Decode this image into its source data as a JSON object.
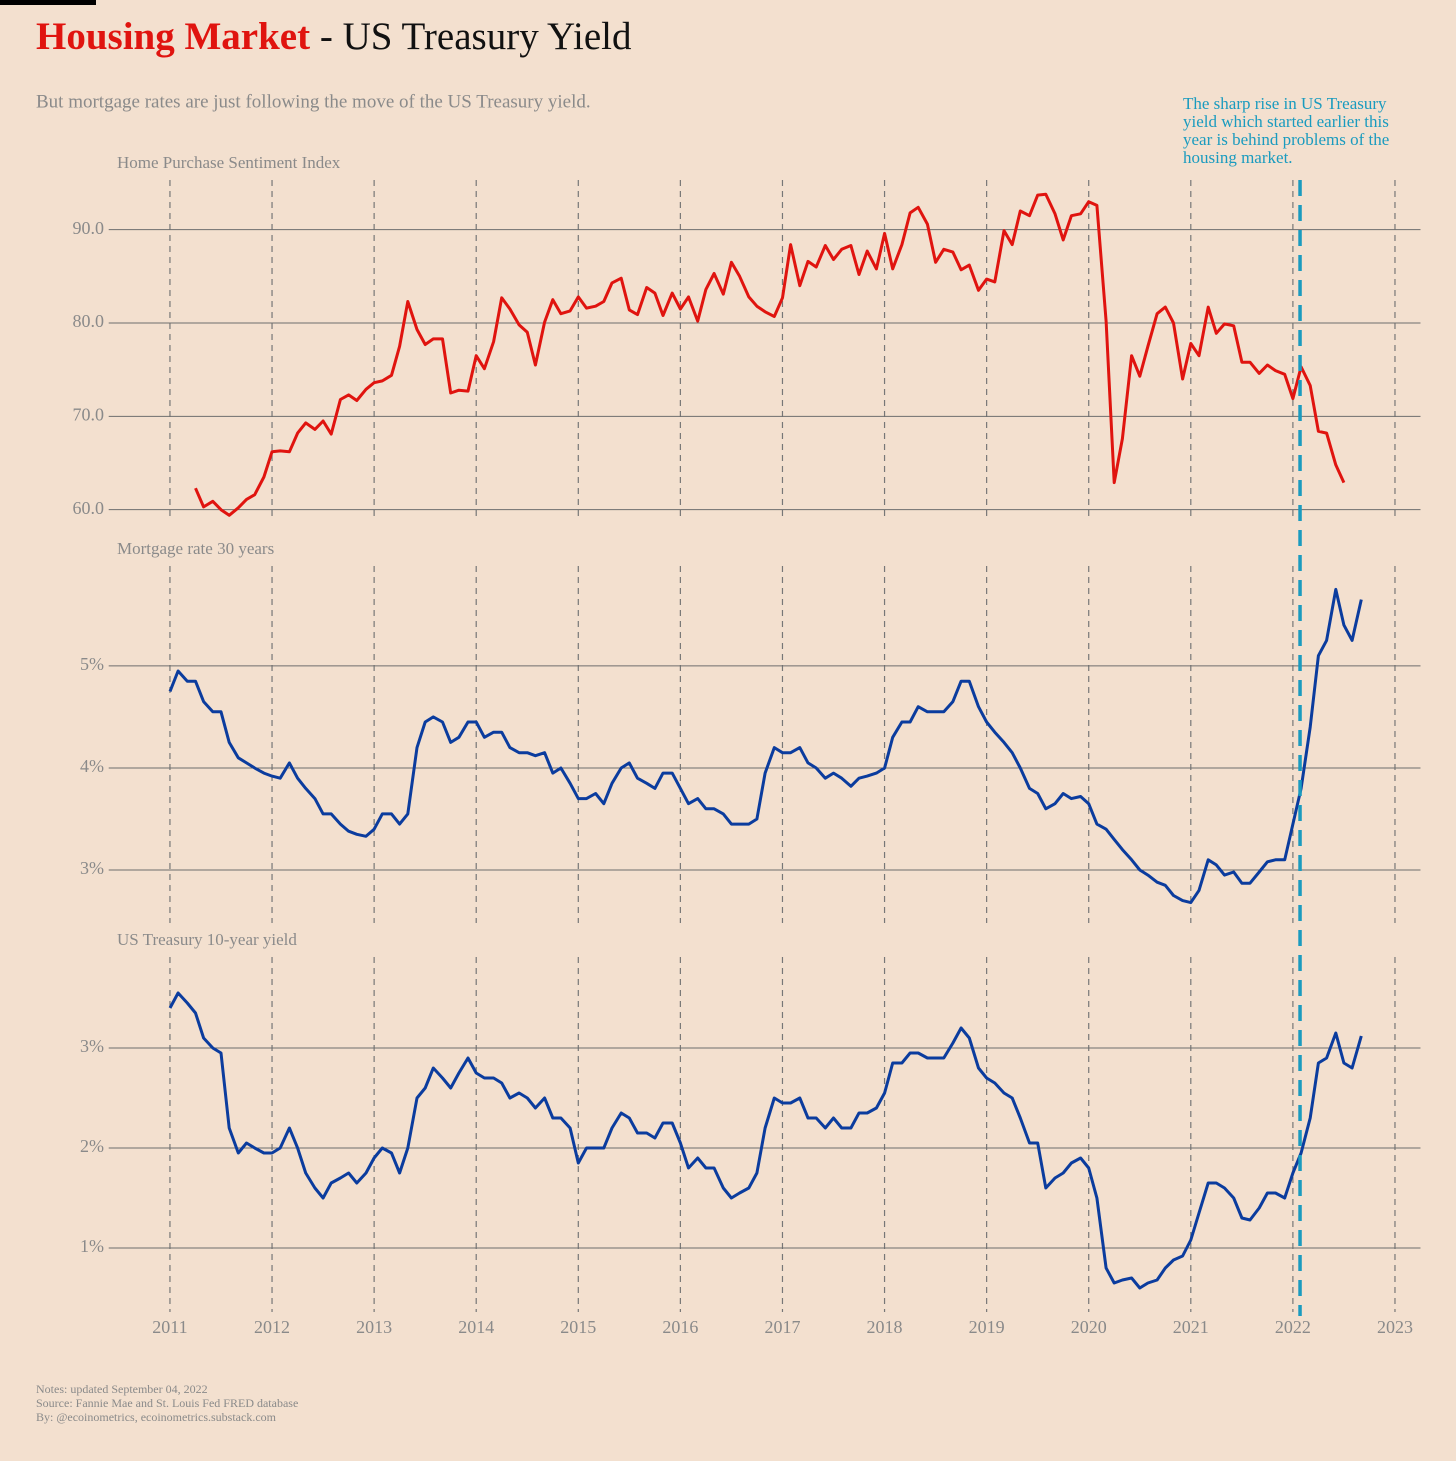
{
  "title": {
    "highlight": "Housing Market",
    "rest": " - US Treasury Yield"
  },
  "subtitle": "But mortgage rates are just following the move of the US Treasury yield.",
  "annotation": {
    "lines": [
      "The sharp rise in US Treasury",
      "yield which started earlier this",
      "year is behind problems of the",
      "housing market."
    ],
    "x": 2022.07,
    "color": "#1a9bbf"
  },
  "notes": [
    "Notes: updated September 04, 2022",
    "Source: Fannie Mae and St. Louis Fed FRED database",
    "By: @ecoinometrics, ecoinometrics.substack.com"
  ],
  "chart_data": [
    {
      "type": "line",
      "title": "Home Purchase Sentiment Index",
      "color": "#e0140f",
      "ylim": [
        59,
        95
      ],
      "yticks": [
        {
          "value": 60,
          "label": "60.0"
        },
        {
          "value": 70,
          "label": "70.0"
        },
        {
          "value": 80,
          "label": "80.0"
        },
        {
          "value": 90,
          "label": "90.0"
        }
      ],
      "x": [
        2011.25,
        2011.33,
        2011.42,
        2011.5,
        2011.58,
        2011.67,
        2011.75,
        2011.83,
        2011.92,
        2012.0,
        2012.08,
        2012.17,
        2012.25,
        2012.33,
        2012.42,
        2012.5,
        2012.58,
        2012.67,
        2012.75,
        2012.83,
        2012.92,
        2013.0,
        2013.08,
        2013.17,
        2013.25,
        2013.33,
        2013.42,
        2013.5,
        2013.58,
        2013.67,
        2013.75,
        2013.83,
        2013.92,
        2014.0,
        2014.08,
        2014.17,
        2014.25,
        2014.33,
        2014.42,
        2014.5,
        2014.58,
        2014.67,
        2014.75,
        2014.83,
        2014.92,
        2015.0,
        2015.08,
        2015.17,
        2015.25,
        2015.33,
        2015.42,
        2015.5,
        2015.58,
        2015.67,
        2015.75,
        2015.83,
        2015.92,
        2016.0,
        2016.08,
        2016.17,
        2016.25,
        2016.33,
        2016.42,
        2016.5,
        2016.58,
        2016.67,
        2016.75,
        2016.83,
        2016.92,
        2017.0,
        2017.08,
        2017.17,
        2017.25,
        2017.33,
        2017.42,
        2017.5,
        2017.58,
        2017.67,
        2017.75,
        2017.83,
        2017.92,
        2018.0,
        2018.08,
        2018.17,
        2018.25,
        2018.33,
        2018.42,
        2018.5,
        2018.58,
        2018.67,
        2018.75,
        2018.83,
        2018.92,
        2019.0,
        2019.08,
        2019.17,
        2019.25,
        2019.33,
        2019.42,
        2019.5,
        2019.58,
        2019.67,
        2019.75,
        2019.83,
        2019.92,
        2020.0,
        2020.08,
        2020.17,
        2020.25,
        2020.33,
        2020.42,
        2020.5,
        2020.58,
        2020.67,
        2020.75,
        2020.83,
        2020.92,
        2021.0,
        2021.08,
        2021.17,
        2021.25,
        2021.33,
        2021.42,
        2021.5,
        2021.58,
        2021.67,
        2021.75,
        2021.83,
        2021.92,
        2022.0,
        2022.08,
        2022.17,
        2022.25,
        2022.33,
        2022.42,
        2022.5
      ],
      "values": [
        62.3,
        60.3,
        60.9,
        60.0,
        59.4,
        60.2,
        61.1,
        61.6,
        63.5,
        66.2,
        66.3,
        66.2,
        68.2,
        69.3,
        68.6,
        69.5,
        68.1,
        71.8,
        72.3,
        71.7,
        72.9,
        73.6,
        73.8,
        74.4,
        77.5,
        82.3,
        79.3,
        77.7,
        78.3,
        78.3,
        72.5,
        72.8,
        72.7,
        76.5,
        75.1,
        78.0,
        82.7,
        81.5,
        79.8,
        79.0,
        75.5,
        80.1,
        82.5,
        81.0,
        81.3,
        82.8,
        81.6,
        81.8,
        82.3,
        84.3,
        84.8,
        81.4,
        80.9,
        83.8,
        83.2,
        80.8,
        83.2,
        81.5,
        82.8,
        80.2,
        83.6,
        85.3,
        83.1,
        86.5,
        85.0,
        82.8,
        81.8,
        81.2,
        80.7,
        82.7,
        88.4,
        84.0,
        86.6,
        86.0,
        88.3,
        86.8,
        87.9,
        88.3,
        85.2,
        87.7,
        85.8,
        89.6,
        85.8,
        88.4,
        91.8,
        92.4,
        90.6,
        86.5,
        87.9,
        87.6,
        85.7,
        86.2,
        83.5,
        84.7,
        84.4,
        89.9,
        88.4,
        92.0,
        91.5,
        93.7,
        93.8,
        91.7,
        88.9,
        91.5,
        91.7,
        93.0,
        92.6,
        80.2,
        62.9,
        67.6,
        76.5,
        74.3,
        77.5,
        81.0,
        81.7,
        80.0,
        74.0,
        77.8,
        76.5,
        81.7,
        78.9,
        79.9,
        79.7,
        75.8,
        75.8,
        74.6,
        75.5,
        74.9,
        74.5,
        71.9,
        75.3,
        73.3,
        68.4,
        68.2,
        64.8,
        62.9
      ]
    },
    {
      "type": "line",
      "title": "Mortgage rate 30 years",
      "color": "#0b3c9e",
      "ylim": [
        2.5,
        5.95
      ],
      "yticks": [
        {
          "value": 3,
          "label": "3%"
        },
        {
          "value": 4,
          "label": "4%"
        },
        {
          "value": 5,
          "label": "5%"
        }
      ],
      "x": [
        2011.0,
        2011.08,
        2011.17,
        2011.25,
        2011.33,
        2011.42,
        2011.5,
        2011.58,
        2011.67,
        2011.75,
        2011.83,
        2011.92,
        2012.0,
        2012.08,
        2012.17,
        2012.25,
        2012.33,
        2012.42,
        2012.5,
        2012.58,
        2012.67,
        2012.75,
        2012.83,
        2012.92,
        2013.0,
        2013.08,
        2013.17,
        2013.25,
        2013.33,
        2013.42,
        2013.5,
        2013.58,
        2013.67,
        2013.75,
        2013.83,
        2013.92,
        2014.0,
        2014.08,
        2014.17,
        2014.25,
        2014.33,
        2014.42,
        2014.5,
        2014.58,
        2014.67,
        2014.75,
        2014.83,
        2014.92,
        2015.0,
        2015.08,
        2015.17,
        2015.25,
        2015.33,
        2015.42,
        2015.5,
        2015.58,
        2015.67,
        2015.75,
        2015.83,
        2015.92,
        2016.0,
        2016.08,
        2016.17,
        2016.25,
        2016.33,
        2016.42,
        2016.5,
        2016.58,
        2016.67,
        2016.75,
        2016.83,
        2016.92,
        2017.0,
        2017.08,
        2017.17,
        2017.25,
        2017.33,
        2017.42,
        2017.5,
        2017.58,
        2017.67,
        2017.75,
        2017.83,
        2017.92,
        2018.0,
        2018.08,
        2018.17,
        2018.25,
        2018.33,
        2018.42,
        2018.5,
        2018.58,
        2018.67,
        2018.75,
        2018.83,
        2018.92,
        2019.0,
        2019.08,
        2019.17,
        2019.25,
        2019.33,
        2019.42,
        2019.5,
        2019.58,
        2019.67,
        2019.75,
        2019.83,
        2019.92,
        2020.0,
        2020.08,
        2020.17,
        2020.25,
        2020.33,
        2020.42,
        2020.5,
        2020.58,
        2020.67,
        2020.75,
        2020.83,
        2020.92,
        2021.0,
        2021.08,
        2021.17,
        2021.25,
        2021.33,
        2021.42,
        2021.5,
        2021.58,
        2021.67,
        2021.75,
        2021.83,
        2021.92,
        2022.0,
        2022.08,
        2022.17,
        2022.25,
        2022.33,
        2022.42,
        2022.5,
        2022.58,
        2022.67
      ],
      "values": [
        4.75,
        4.95,
        4.85,
        4.85,
        4.65,
        4.55,
        4.55,
        4.25,
        4.1,
        4.05,
        4.0,
        3.95,
        3.92,
        3.9,
        4.05,
        3.9,
        3.8,
        3.7,
        3.55,
        3.55,
        3.45,
        3.38,
        3.35,
        3.33,
        3.4,
        3.55,
        3.55,
        3.45,
        3.55,
        4.2,
        4.45,
        4.5,
        4.45,
        4.25,
        4.3,
        4.45,
        4.45,
        4.3,
        4.35,
        4.35,
        4.2,
        4.15,
        4.15,
        4.12,
        4.15,
        3.95,
        4.0,
        3.85,
        3.7,
        3.7,
        3.75,
        3.65,
        3.85,
        4.0,
        4.05,
        3.9,
        3.85,
        3.8,
        3.95,
        3.95,
        3.8,
        3.65,
        3.7,
        3.6,
        3.6,
        3.55,
        3.45,
        3.45,
        3.45,
        3.5,
        3.95,
        4.2,
        4.15,
        4.15,
        4.2,
        4.05,
        4.0,
        3.9,
        3.95,
        3.9,
        3.82,
        3.9,
        3.92,
        3.95,
        4.0,
        4.3,
        4.45,
        4.45,
        4.6,
        4.55,
        4.55,
        4.55,
        4.65,
        4.85,
        4.85,
        4.6,
        4.45,
        4.35,
        4.25,
        4.15,
        4.0,
        3.8,
        3.75,
        3.6,
        3.65,
        3.75,
        3.7,
        3.72,
        3.65,
        3.45,
        3.4,
        3.3,
        3.2,
        3.1,
        3.0,
        2.95,
        2.88,
        2.85,
        2.75,
        2.7,
        2.68,
        2.8,
        3.1,
        3.05,
        2.95,
        2.98,
        2.87,
        2.87,
        2.98,
        3.08,
        3.1,
        3.1,
        3.45,
        3.8,
        4.4,
        5.1,
        5.25,
        5.75,
        5.4,
        5.25,
        5.65
      ]
    },
    {
      "type": "line",
      "title": "US Treasury 10-year yield",
      "color": "#0b3c9e",
      "ylim": [
        0.38,
        3.88
      ],
      "yticks": [
        {
          "value": 1,
          "label": "1%"
        },
        {
          "value": 2,
          "label": "2%"
        },
        {
          "value": 3,
          "label": "3%"
        }
      ],
      "xlim": [
        2010.4,
        2023.25
      ],
      "xticks": [
        2011,
        2012,
        2013,
        2014,
        2015,
        2016,
        2017,
        2018,
        2019,
        2020,
        2021,
        2022,
        2023
      ],
      "x": [
        2011.0,
        2011.08,
        2011.17,
        2011.25,
        2011.33,
        2011.42,
        2011.5,
        2011.58,
        2011.67,
        2011.75,
        2011.83,
        2011.92,
        2012.0,
        2012.08,
        2012.17,
        2012.25,
        2012.33,
        2012.42,
        2012.5,
        2012.58,
        2012.67,
        2012.75,
        2012.83,
        2012.92,
        2013.0,
        2013.08,
        2013.17,
        2013.25,
        2013.33,
        2013.42,
        2013.5,
        2013.58,
        2013.67,
        2013.75,
        2013.83,
        2013.92,
        2014.0,
        2014.08,
        2014.17,
        2014.25,
        2014.33,
        2014.42,
        2014.5,
        2014.58,
        2014.67,
        2014.75,
        2014.83,
        2014.92,
        2015.0,
        2015.08,
        2015.17,
        2015.25,
        2015.33,
        2015.42,
        2015.5,
        2015.58,
        2015.67,
        2015.75,
        2015.83,
        2015.92,
        2016.0,
        2016.08,
        2016.17,
        2016.25,
        2016.33,
        2016.42,
        2016.5,
        2016.58,
        2016.67,
        2016.75,
        2016.83,
        2016.92,
        2017.0,
        2017.08,
        2017.17,
        2017.25,
        2017.33,
        2017.42,
        2017.5,
        2017.58,
        2017.67,
        2017.75,
        2017.83,
        2017.92,
        2018.0,
        2018.08,
        2018.17,
        2018.25,
        2018.33,
        2018.42,
        2018.5,
        2018.58,
        2018.67,
        2018.75,
        2018.83,
        2018.92,
        2019.0,
        2019.08,
        2019.17,
        2019.25,
        2019.33,
        2019.42,
        2019.5,
        2019.58,
        2019.67,
        2019.75,
        2019.83,
        2019.92,
        2020.0,
        2020.08,
        2020.17,
        2020.25,
        2020.33,
        2020.42,
        2020.5,
        2020.58,
        2020.67,
        2020.75,
        2020.83,
        2020.92,
        2021.0,
        2021.08,
        2021.17,
        2021.25,
        2021.33,
        2021.42,
        2021.5,
        2021.58,
        2021.67,
        2021.75,
        2021.83,
        2021.92,
        2022.0,
        2022.08,
        2022.17,
        2022.25,
        2022.33,
        2022.42,
        2022.5,
        2022.58,
        2022.67
      ],
      "values": [
        3.4,
        3.55,
        3.45,
        3.35,
        3.1,
        3.0,
        2.95,
        2.2,
        1.95,
        2.05,
        2.0,
        1.95,
        1.95,
        2.0,
        2.2,
        2.0,
        1.75,
        1.6,
        1.5,
        1.65,
        1.7,
        1.75,
        1.65,
        1.75,
        1.9,
        2.0,
        1.95,
        1.75,
        2.0,
        2.5,
        2.6,
        2.8,
        2.7,
        2.6,
        2.75,
        2.9,
        2.75,
        2.7,
        2.7,
        2.65,
        2.5,
        2.55,
        2.5,
        2.4,
        2.5,
        2.3,
        2.3,
        2.2,
        1.85,
        2.0,
        2.0,
        2.0,
        2.2,
        2.35,
        2.3,
        2.15,
        2.15,
        2.1,
        2.25,
        2.25,
        2.05,
        1.8,
        1.9,
        1.8,
        1.8,
        1.6,
        1.5,
        1.55,
        1.6,
        1.75,
        2.2,
        2.5,
        2.45,
        2.45,
        2.5,
        2.3,
        2.3,
        2.2,
        2.3,
        2.2,
        2.2,
        2.35,
        2.35,
        2.4,
        2.55,
        2.85,
        2.85,
        2.95,
        2.95,
        2.9,
        2.9,
        2.9,
        3.05,
        3.2,
        3.1,
        2.8,
        2.7,
        2.65,
        2.55,
        2.5,
        2.3,
        2.05,
        2.05,
        1.6,
        1.7,
        1.75,
        1.85,
        1.9,
        1.8,
        1.5,
        0.8,
        0.65,
        0.68,
        0.7,
        0.6,
        0.65,
        0.68,
        0.8,
        0.88,
        0.92,
        1.08,
        1.35,
        1.65,
        1.65,
        1.6,
        1.5,
        1.3,
        1.28,
        1.4,
        1.55,
        1.55,
        1.5,
        1.75,
        1.95,
        2.3,
        2.85,
        2.9,
        3.15,
        2.85,
        2.8,
        3.12
      ]
    }
  ]
}
